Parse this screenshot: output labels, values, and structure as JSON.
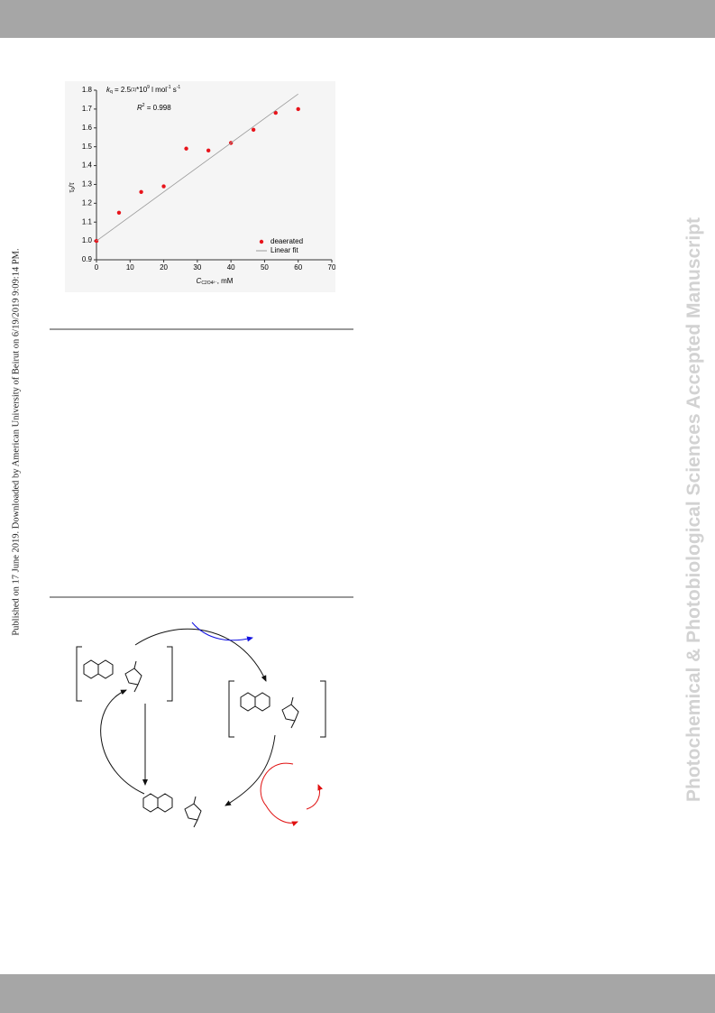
{
  "side_note": "Published on 17 June 2019. Downloaded by American University of Beirut on 6/19/2019 9:09:14 PM.",
  "watermark": "Photochemical & Photobiological Sciences Accepted Manuscript",
  "chart_data": {
    "type": "scatter",
    "annotations": [
      [
        "k",
        "q",
        " = 2.5",
        "(1)",
        "*10",
        "9",
        " l mol",
        "-1",
        " s",
        "-1"
      ],
      [
        "R",
        "2",
        " = 0.998"
      ]
    ],
    "y_label": [
      "τ",
      "0",
      "/τ"
    ],
    "x_label": [
      "C",
      "C2O4²⁻",
      ", mM"
    ],
    "xlim": [
      0,
      70
    ],
    "xticks": [
      0,
      10,
      20,
      30,
      40,
      50,
      60,
      70
    ],
    "ylim": [
      0.9,
      1.8
    ],
    "yticks": [
      0.9,
      {
        "value": 1,
        "label": "1.0"
      },
      1.1,
      1.2,
      1.3,
      1.4,
      1.5,
      1.6,
      1.7,
      1.8
    ],
    "legend": "lower right",
    "series": [
      {
        "name": "deaerated",
        "color": "#e8141b",
        "mode": "markers",
        "x": [
          0,
          6.7,
          13.3,
          20,
          26.7,
          33.3,
          40,
          46.7,
          53.3,
          60
        ],
        "values": [
          1.0,
          1.15,
          1.26,
          1.29,
          1.49,
          1.48,
          1.52,
          1.59,
          1.68,
          1.7
        ]
      },
      {
        "name": "Linear fit",
        "color": "#9a9a9a",
        "mode": "line",
        "x": [
          0,
          60
        ],
        "values": [
          1.0,
          1.78
        ]
      }
    ]
  }
}
